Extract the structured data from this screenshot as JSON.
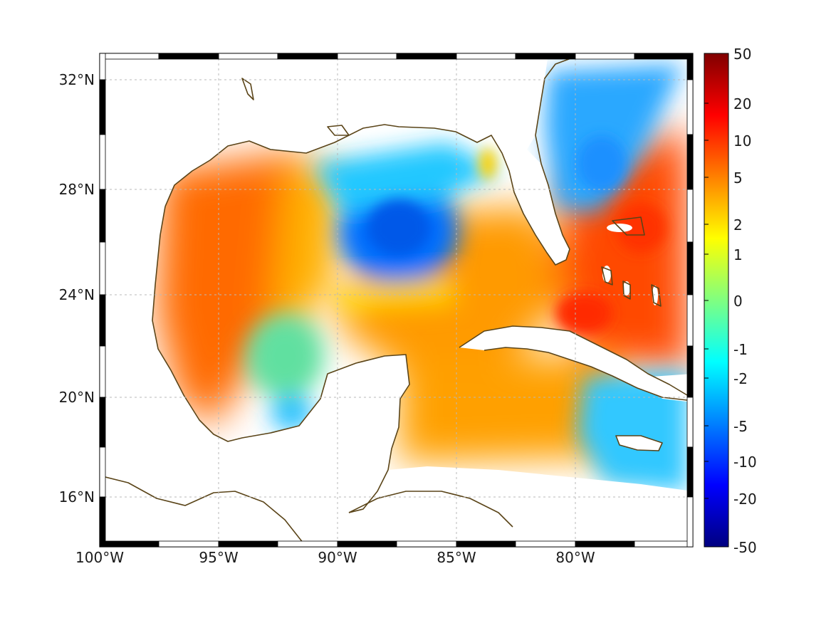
{
  "map": {
    "x_ticks": [
      "100°W",
      "95°W",
      "90°W",
      "85°W",
      "80°W"
    ],
    "y_ticks": [
      "32°N",
      "28°N",
      "24°N",
      "20°N",
      "16°N"
    ],
    "grid": true,
    "frame": "alternating-black-white-ticks"
  },
  "colorbar": {
    "labels": [
      "50",
      "20",
      "10",
      "5",
      "2",
      "1",
      "0",
      "-1",
      "-2",
      "-5",
      "-10",
      "-20",
      "-50"
    ],
    "colors": [
      "#800000",
      "#ff0000",
      "#ff8000",
      "#ffff00",
      "#80ff80",
      "#00ffff",
      "#0080ff",
      "#0000ff",
      "#000080"
    ]
  },
  "style": {
    "land": "#ffffff",
    "coastline": "#5a4418",
    "grid": "#b8b8b8"
  }
}
